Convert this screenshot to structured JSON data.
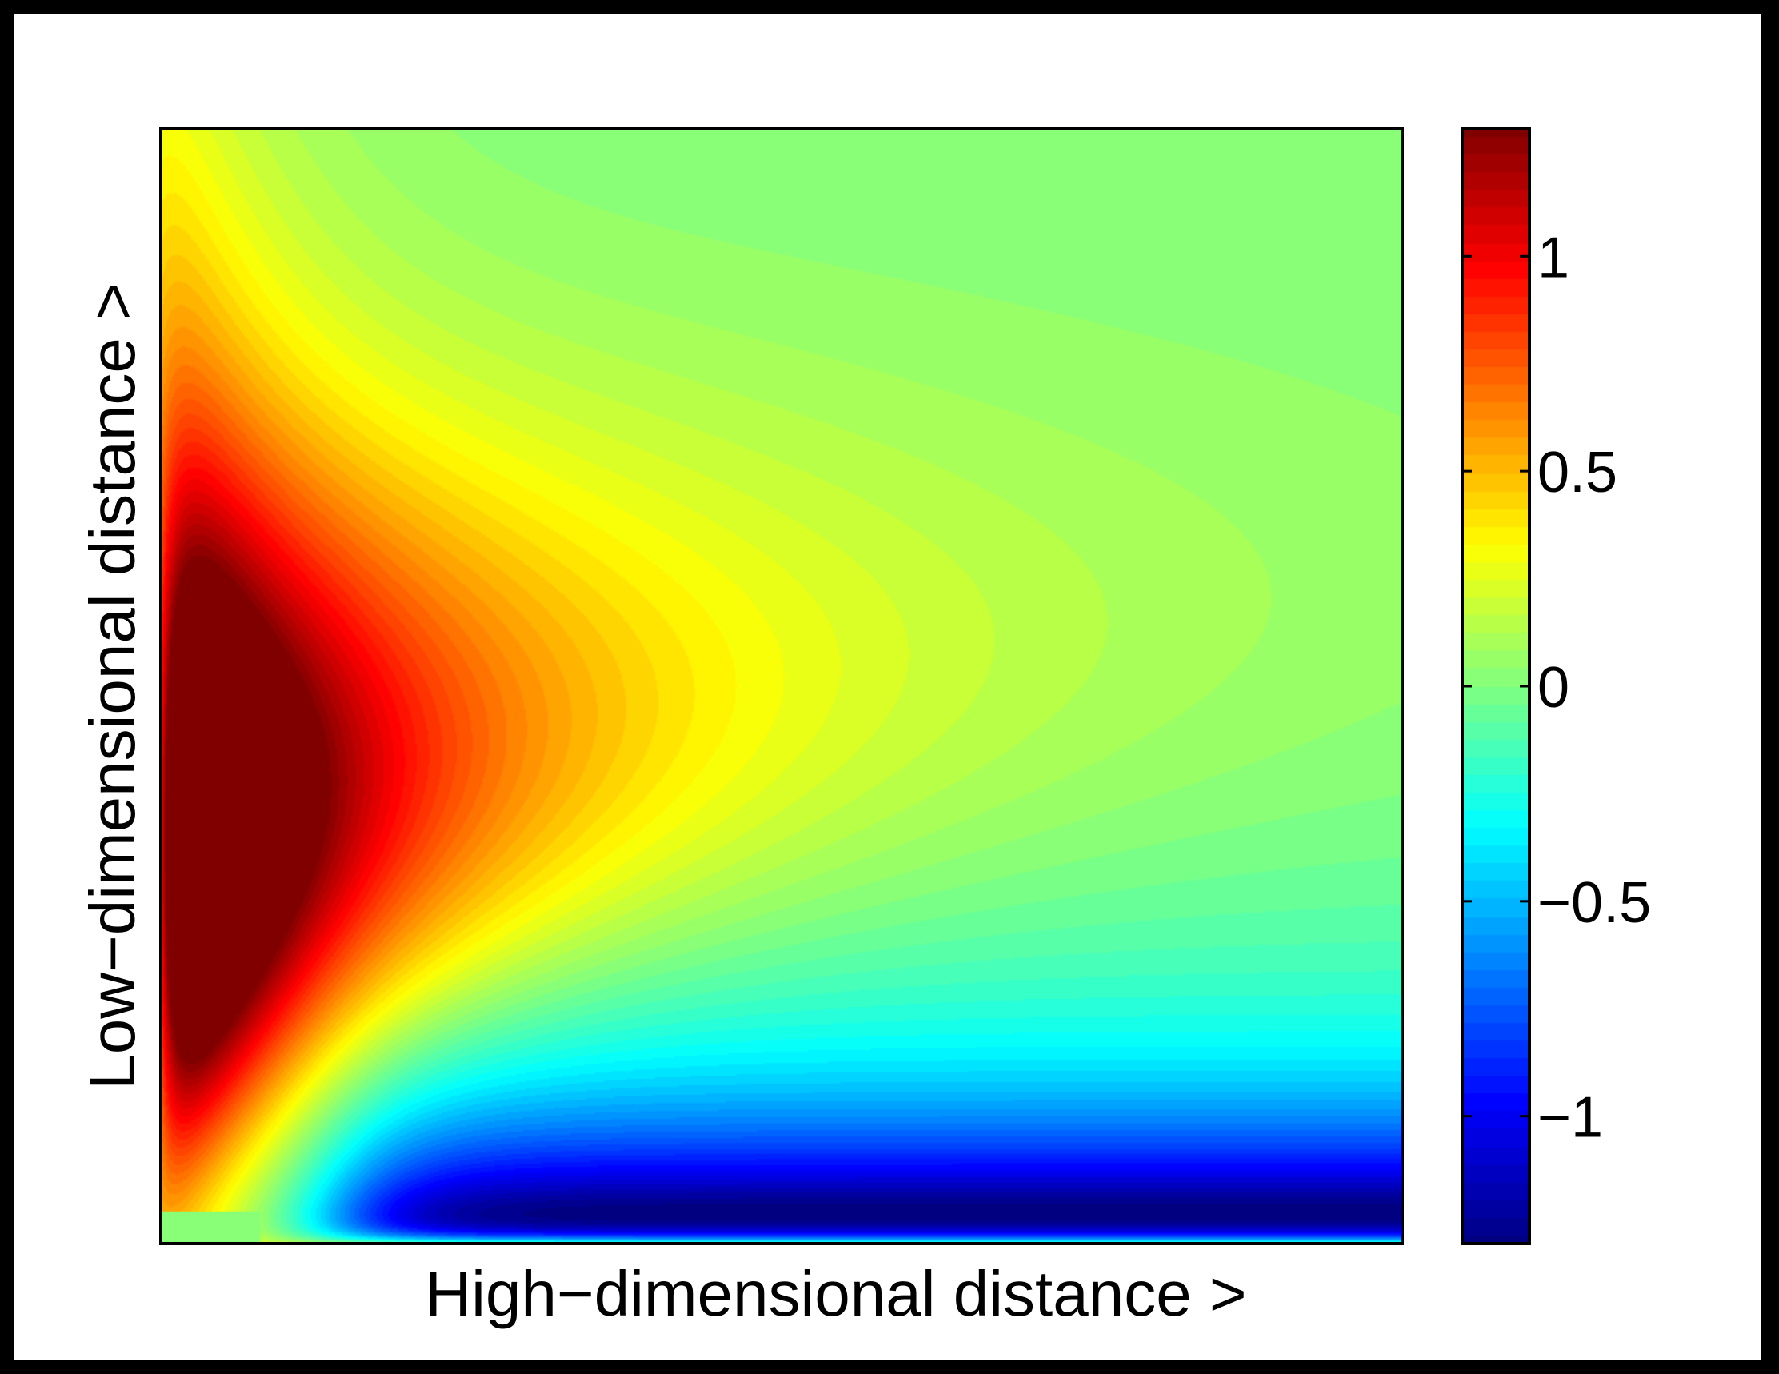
{
  "chart_data": {
    "type": "heatmap",
    "title": "",
    "xlabel": "High−dimensional distance >",
    "ylabel": "Low−dimensional distance >",
    "x_ticks": [],
    "y_ticks": [],
    "colormap": "jet",
    "grid": false,
    "colorbar": {
      "position": "right",
      "range": [
        -1.3,
        1.3
      ],
      "ticks": [
        {
          "value": 1,
          "label": "1"
        },
        {
          "value": 0.5,
          "label": "0.5"
        },
        {
          "value": 0,
          "label": "0"
        },
        {
          "value": -0.5,
          "label": "−0.5"
        },
        {
          "value": -1,
          "label": "−1"
        }
      ]
    },
    "description_of_field": {
      "x_range": [
        0,
        1
      ],
      "y_range": [
        0,
        1
      ],
      "max_value": 1.3,
      "min_value": -1.3,
      "max_location_note": "left edge, lower-middle height",
      "min_location_note": "bottom band, spanning most of the width"
    }
  },
  "colors": {
    "background": "#000000",
    "figure": "#ffffff",
    "axis": "#000000"
  }
}
